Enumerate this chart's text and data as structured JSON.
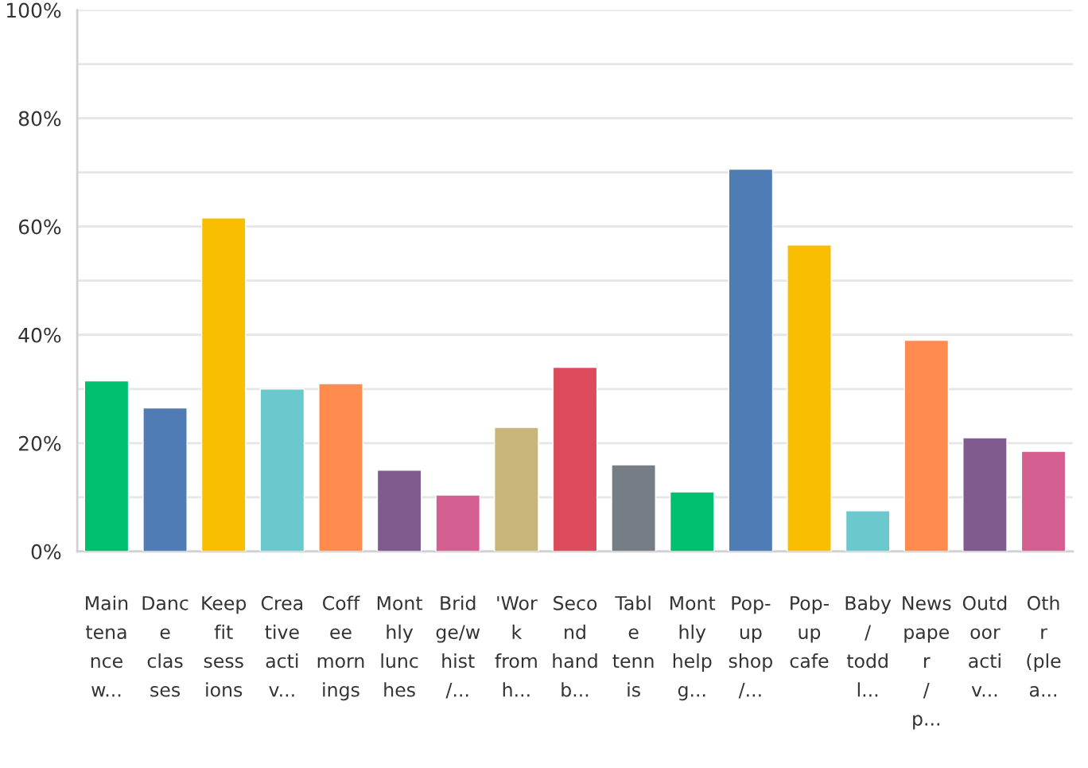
{
  "chart_data": {
    "type": "bar",
    "categories": [
      "Main\ntena\nnce\nw...",
      "Danc\ne\nclas\nses",
      "Keep\nfit\nsess\nions",
      "Crea\ntive\nacti\nv...",
      "Coff\nee\nmorn\nings",
      "Mont\nhly\nlunc\nhes",
      "Brid\nge/w\nhist\n/...",
      "'Wor\nk\nfrom\nh...",
      "Seco\nnd\nhand\nb...",
      "Tabl\ne\ntenn\nis",
      "Mont\nhly\nhelp\ng...",
      "Pop-\nup\nshop\n/...",
      "Pop-\nup\ncafe",
      "Baby\n/\ntodd\nl...",
      "News\npape\nr\n/\np...",
      "Outd\noor\nacti\nv...",
      "Oth\nr\n(ple\na..."
    ],
    "values": [
      31.5,
      26.5,
      61.6,
      30.0,
      31.0,
      15.0,
      10.4,
      22.9,
      34.0,
      16.0,
      11.0,
      70.6,
      56.6,
      7.5,
      39.0,
      21.0,
      18.5
    ],
    "colors": [
      "#00bf6f",
      "#507cb6",
      "#f9be00",
      "#6bc8cd",
      "#ff8b4f",
      "#7f5b8e",
      "#d25f90",
      "#c8b579",
      "#dc4b5c",
      "#767d85",
      "#00bf6f",
      "#507cb6",
      "#f9be00",
      "#6bc8cd",
      "#ff8b4f",
      "#7f5b8e",
      "#d25f90"
    ],
    "ylim": [
      0,
      100
    ],
    "yticks": [
      {
        "value": 0,
        "label": "0%"
      },
      {
        "value": 10,
        "label": null
      },
      {
        "value": 20,
        "label": "20%"
      },
      {
        "value": 30,
        "label": null
      },
      {
        "value": 40,
        "label": "40%"
      },
      {
        "value": 50,
        "label": null
      },
      {
        "value": 60,
        "label": "60%"
      },
      {
        "value": 70,
        "label": null
      },
      {
        "value": 80,
        "label": "80%"
      },
      {
        "value": 90,
        "label": null
      },
      {
        "value": 100,
        "label": "100%"
      }
    ],
    "grid": "y"
  }
}
